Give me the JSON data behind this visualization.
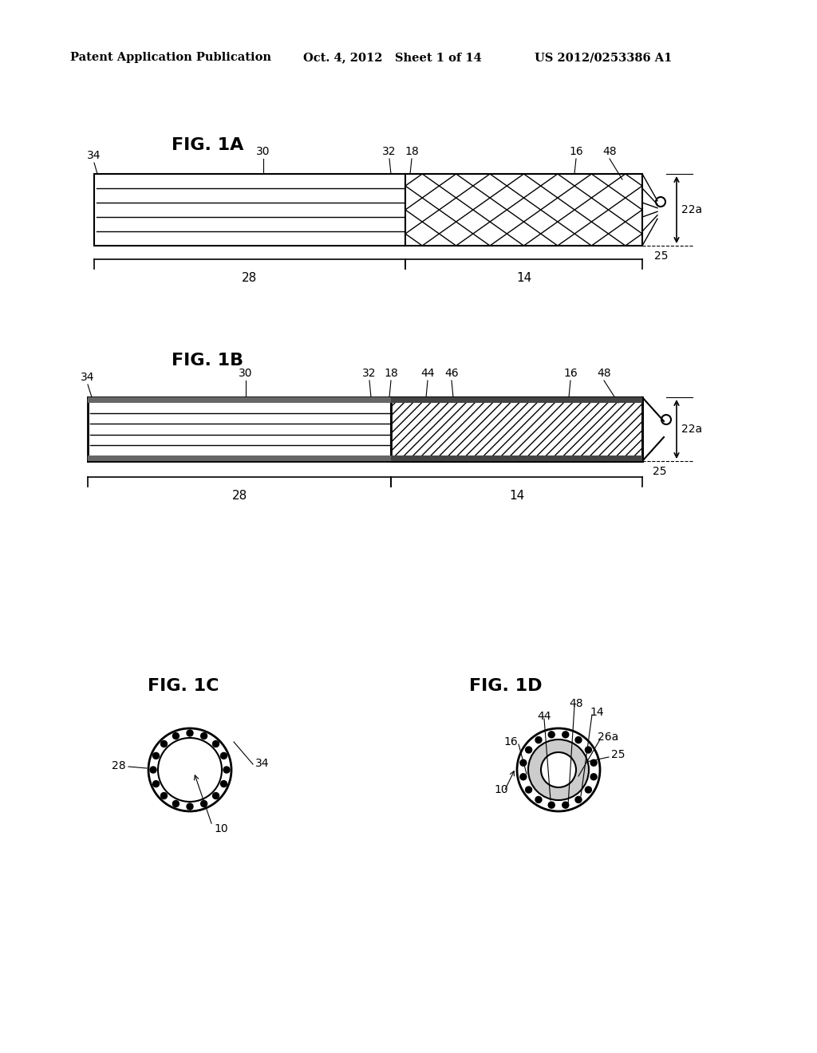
{
  "background_color": "#ffffff",
  "header_left": "Patent Application Publication",
  "header_mid": "Oct. 4, 2012   Sheet 1 of 14",
  "header_right": "US 2012/0253386 A1",
  "fig1a_title": "FIG. 1A",
  "fig1b_title": "FIG. 1B",
  "fig1c_title": "FIG. 1C",
  "fig1d_title": "FIG. 1D"
}
